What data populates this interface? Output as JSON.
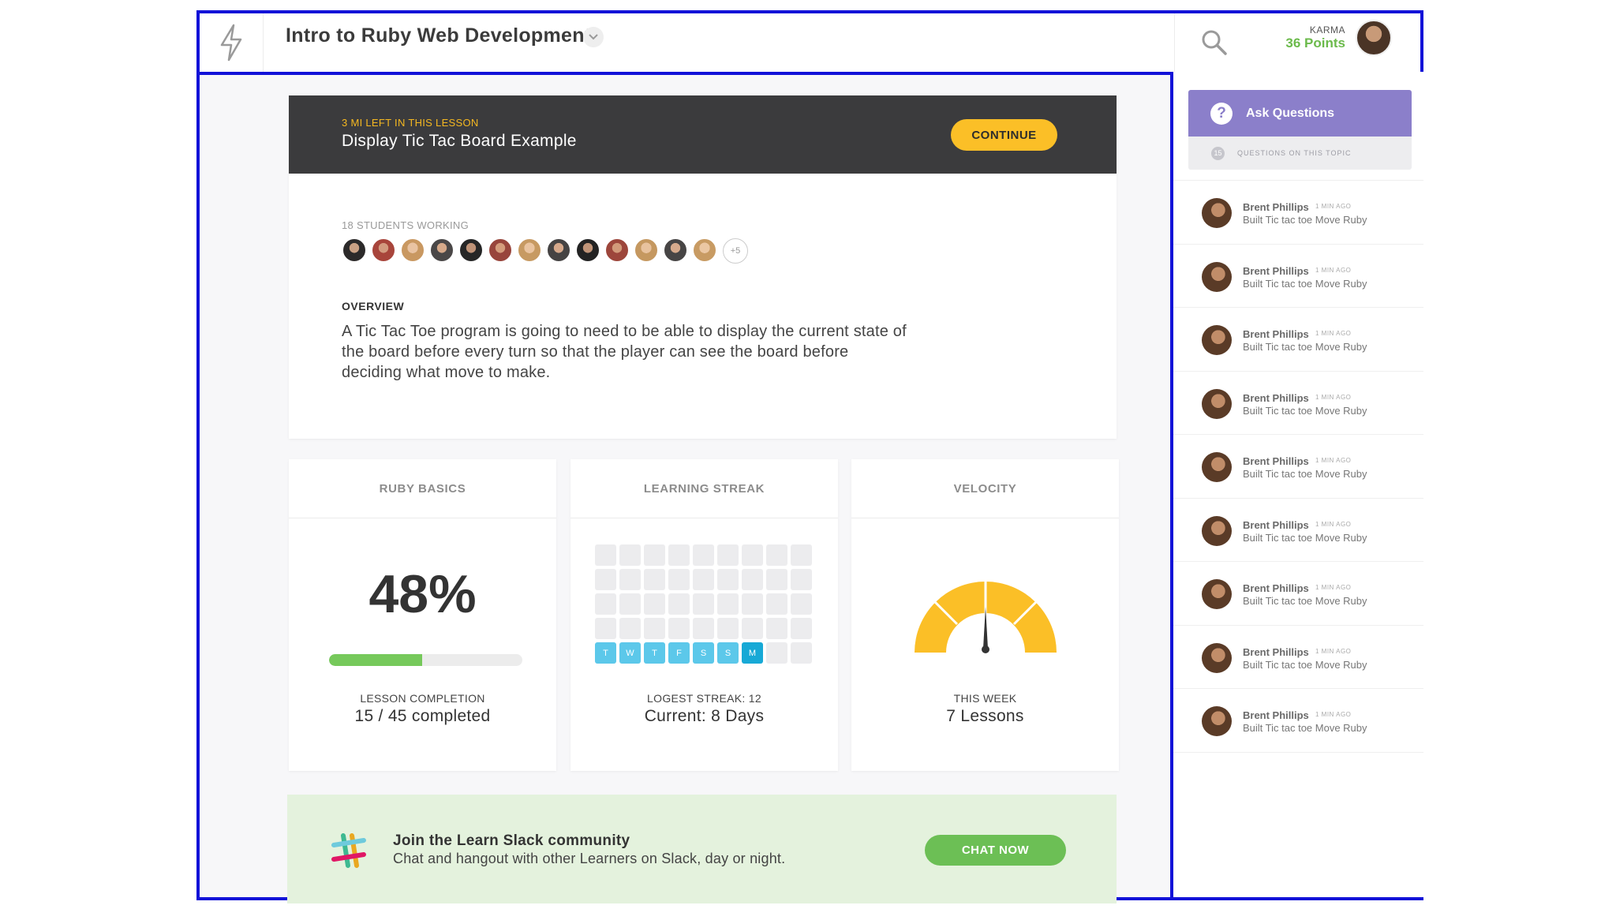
{
  "header": {
    "title": "Intro to Ruby Web Development",
    "karma_label": "KARMA",
    "karma_points": "36 Points"
  },
  "lesson": {
    "time_left": "3 MI  LEFT IN THIS  LESSON",
    "title": "Display Tic Tac Board Example",
    "continue_label": "CONTINUE",
    "students_label": "18 STUDENTS WORKING",
    "more_students": "+5",
    "overview_label": "OVERVIEW",
    "overview_text": "A Tic Tac Toe program is going to need to be able to display the current state of the board before every turn so that the player can see the board before deciding what move to make."
  },
  "ruby_basics": {
    "title": "RUBY BASICS",
    "percent": "48%",
    "progress_fraction": 0.48,
    "completion_label": "LESSON COMPLETION",
    "completion_value": "15 / 45 completed"
  },
  "learning_streak": {
    "title": "LEARNING STREAK",
    "day_labels": [
      "T",
      "W",
      "T",
      "F",
      "S",
      "S",
      "M"
    ],
    "longest_label": "LOGEST STREAK: 12",
    "current": "Current: 8 Days"
  },
  "velocity": {
    "title": "VELOCITY",
    "week_label": "THIS WEEK",
    "value": "7 Lessons"
  },
  "slack": {
    "title": "Join the Learn Slack community",
    "subtitle": "Chat and hangout with other Learners on Slack, day or night.",
    "button": "CHAT NOW"
  },
  "sidebar": {
    "ask_label": "Ask Questions",
    "question_count": "15",
    "questions_label": "QUESTIONS ON THIS TOPIC",
    "feed": [
      {
        "name": "Brent Phillips",
        "time": "1 MIN AGO",
        "text": "Built Tic tac toe  Move Ruby"
      },
      {
        "name": "Brent Phillips",
        "time": "1 MIN AGO",
        "text": "Built Tic tac toe  Move Ruby"
      },
      {
        "name": "Brent Phillips",
        "time": "1 MIN AGO",
        "text": "Built Tic tac toe  Move Ruby"
      },
      {
        "name": "Brent Phillips",
        "time": "1 MIN AGO",
        "text": "Built Tic tac toe  Move Ruby"
      },
      {
        "name": "Brent Phillips",
        "time": "1 MIN AGO",
        "text": "Built Tic tac toe  Move Ruby"
      },
      {
        "name": "Brent Phillips",
        "time": "1 MIN AGO",
        "text": "Built Tic tac toe  Move Ruby"
      },
      {
        "name": "Brent Phillips",
        "time": "1 MIN AGO",
        "text": "Built Tic tac toe  Move Ruby"
      },
      {
        "name": "Brent Phillips",
        "time": "1 MIN AGO",
        "text": "Built Tic tac toe  Move Ruby"
      },
      {
        "name": "Brent Phillips",
        "time": "1 MIN AGO",
        "text": "Built Tic tac toe  Move Ruby"
      }
    ]
  },
  "colors": {
    "accent_yellow": "#fbbf27",
    "accent_green": "#76c95b",
    "accent_purple": "#8b7fca",
    "streak_light": "#5cc8ea",
    "streak_today": "#17a9d6",
    "frame_blue": "#1212d8"
  },
  "icons": {
    "logo": "lightning-bolt-icon",
    "search": "search-icon",
    "caret": "chevron-down-icon",
    "question": "question-mark-icon",
    "slack": "slack-logo-icon"
  }
}
